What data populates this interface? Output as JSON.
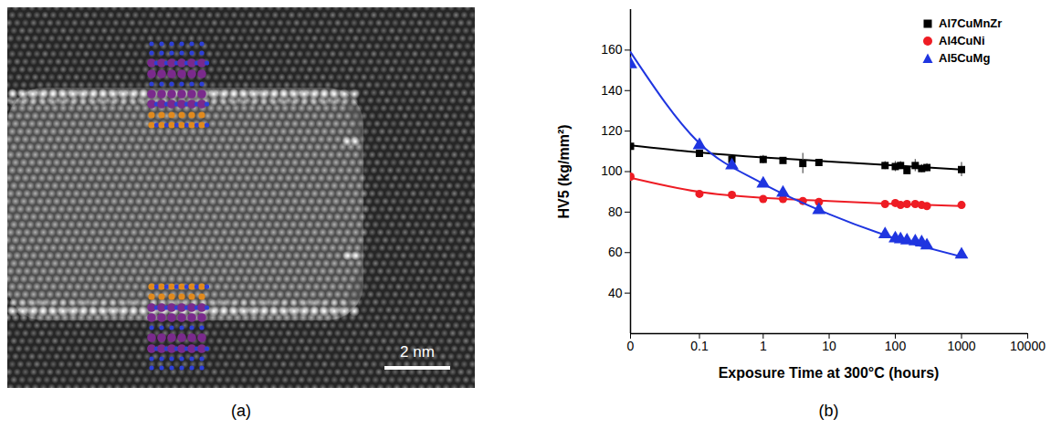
{
  "image_panel": {
    "label": "(a)",
    "scale_bar_label": "2 nm"
  },
  "chart_data": {
    "type": "scatter",
    "panel_label": "(b)",
    "x_label": "Exposure Time at 300°C (hours)",
    "y_label": "HV5 (kg/mm²)",
    "log": "x",
    "xlim": [
      0,
      10000
    ],
    "xticks": [
      0,
      0.1,
      1,
      10,
      100,
      1000,
      10000
    ],
    "ylim": [
      20,
      180
    ],
    "yticks": [
      40,
      60,
      80,
      100,
      120,
      140,
      160
    ],
    "grid": false,
    "legend": "top-right",
    "series": [
      {
        "name": "Al7CuMnZr",
        "color": "#000000",
        "marker": "square",
        "x": [
          0,
          0.1,
          0.33,
          1,
          2,
          4,
          7,
          70,
          100,
          120,
          150,
          200,
          250,
          300,
          1000
        ],
        "values": [
          112.5,
          109,
          106,
          106,
          105.5,
          104,
          104.5,
          103,
          102.5,
          103,
          100.5,
          103,
          101.5,
          102,
          101
        ],
        "errors": [
          1.5,
          1,
          1,
          2,
          1.5,
          5,
          1,
          2,
          2.5,
          2,
          1.5,
          3,
          2,
          2,
          3.5
        ],
        "fit_x": [
          0,
          0.1,
          1,
          10,
          100,
          1000
        ],
        "fit_values": [
          113,
          109.5,
          107,
          105,
          103,
          101
        ]
      },
      {
        "name": "Al4CuNi",
        "color": "#ee1c24",
        "marker": "circle",
        "x": [
          0,
          0.1,
          0.33,
          1,
          2,
          4,
          7,
          70,
          100,
          120,
          150,
          200,
          250,
          300,
          1000
        ],
        "values": [
          97.5,
          89,
          88.5,
          86.5,
          86.5,
          85.5,
          85,
          84,
          84.5,
          83.5,
          84,
          84,
          83.5,
          83,
          83.5
        ],
        "errors": [
          1,
          1,
          0.8,
          1.2,
          1,
          1,
          1,
          1,
          1,
          1.5,
          1,
          1,
          1,
          0.8,
          1
        ],
        "fit_x": [
          0,
          0.1,
          1,
          10,
          100,
          1000
        ],
        "fit_values": [
          97,
          90,
          87,
          85.5,
          84,
          83
        ]
      },
      {
        "name": "Al5CuMg",
        "color": "#1f35e0",
        "marker": "triangle",
        "x": [
          0,
          0.1,
          0.33,
          1,
          2,
          7,
          70,
          100,
          120,
          150,
          200,
          250,
          300,
          1000
        ],
        "values": [
          153,
          113,
          103,
          94,
          89.5,
          81,
          69,
          67,
          66.5,
          66,
          65.5,
          65,
          63.5,
          59
        ],
        "errors": [
          2.5,
          1,
          1,
          1,
          1,
          1,
          1,
          1,
          1,
          1,
          1,
          1,
          1,
          1
        ],
        "fit_x": [
          0,
          0.1,
          1,
          10,
          100,
          1000
        ],
        "fit_values": [
          159,
          114,
          94,
          79,
          67,
          58
        ]
      }
    ]
  }
}
